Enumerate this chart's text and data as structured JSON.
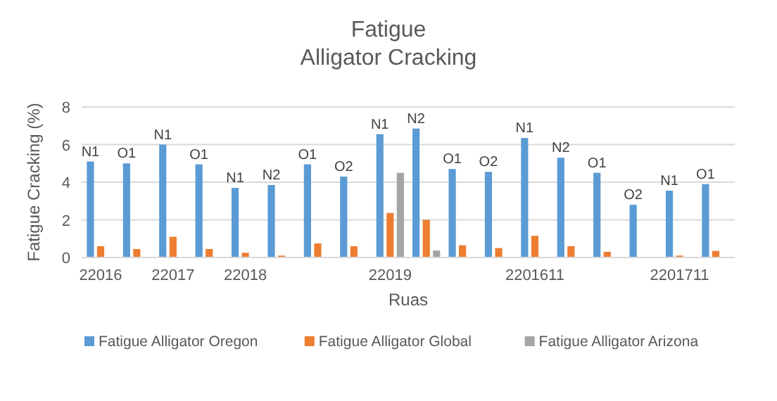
{
  "chart_data": {
    "type": "bar",
    "title": "Fatigue\nAlligator Cracking",
    "xlabel": "Ruas",
    "ylabel": "Fatigue Cracking (%)",
    "categories": [
      "22016",
      null,
      "22017",
      null,
      "22018",
      null,
      null,
      null,
      "22019",
      null,
      null,
      null,
      "2201611",
      null,
      null,
      null,
      "2201711",
      null
    ],
    "series": [
      {
        "name": "Fatigue Alligator Oregon",
        "color": "#5b9bd5",
        "values": [
          5.1,
          5.0,
          6.0,
          4.95,
          3.7,
          3.85,
          4.95,
          4.3,
          6.55,
          6.85,
          4.7,
          4.55,
          6.35,
          5.3,
          4.5,
          2.8,
          3.55,
          3.9
        ],
        "value_labels": [
          "N1",
          "O1",
          "N1",
          "O1",
          "N1",
          "N2",
          "O1",
          "O2",
          "N1",
          "N2",
          "O1",
          "O2",
          "N1",
          "N2",
          "O1",
          "O2",
          "N1",
          "O1"
        ]
      },
      {
        "name": "Fatigue Alligator Global",
        "color": "#ed7d31",
        "values": [
          0.6,
          0.45,
          1.1,
          0.45,
          0.25,
          0.1,
          0.75,
          0.6,
          2.37,
          2.0,
          0.65,
          0.5,
          1.15,
          0.6,
          0.3,
          null,
          0.1,
          0.35
        ]
      },
      {
        "name": "Fatigue Alligator Arizona",
        "color": "#a5a5a5",
        "values": [
          null,
          null,
          null,
          null,
          null,
          null,
          null,
          null,
          4.5,
          0.37,
          null,
          null,
          null,
          null,
          null,
          null,
          null,
          null
        ]
      }
    ],
    "ylim": [
      0,
      8
    ],
    "yticks": [
      0,
      2,
      4,
      6,
      8
    ],
    "grid": "y",
    "legend": "bottom"
  }
}
